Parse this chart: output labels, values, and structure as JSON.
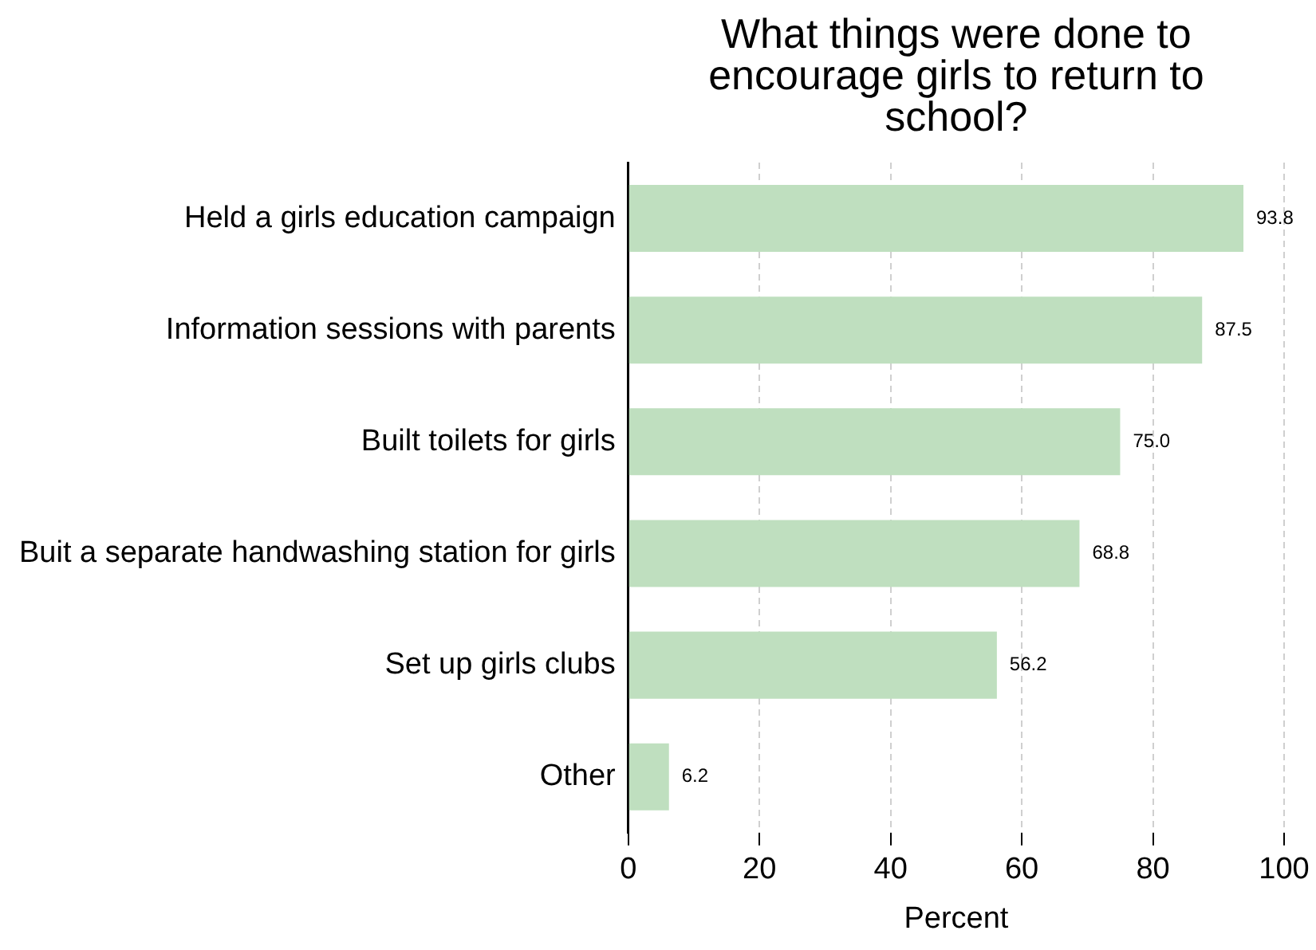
{
  "chart_data": {
    "type": "bar",
    "orientation": "horizontal",
    "title": "What things were done to encourage girls to return to school?",
    "xlabel": "Percent",
    "categories": [
      "Held a girls education campaign",
      "Information sessions with parents",
      "Built toilets for girls",
      "Buit a separate handwashing station for girls",
      "Set up girls clubs",
      "Other"
    ],
    "values": [
      93.8,
      87.5,
      75.0,
      68.8,
      56.2,
      6.2
    ],
    "value_labels": [
      "93.8",
      "87.5",
      "75.0",
      "68.8",
      "56.2",
      "6.2"
    ],
    "color": "#bfdfbf",
    "xlim": [
      0,
      100
    ],
    "xticks": [
      0,
      20,
      40,
      60,
      80,
      100
    ],
    "grid": "x",
    "legend": false
  }
}
